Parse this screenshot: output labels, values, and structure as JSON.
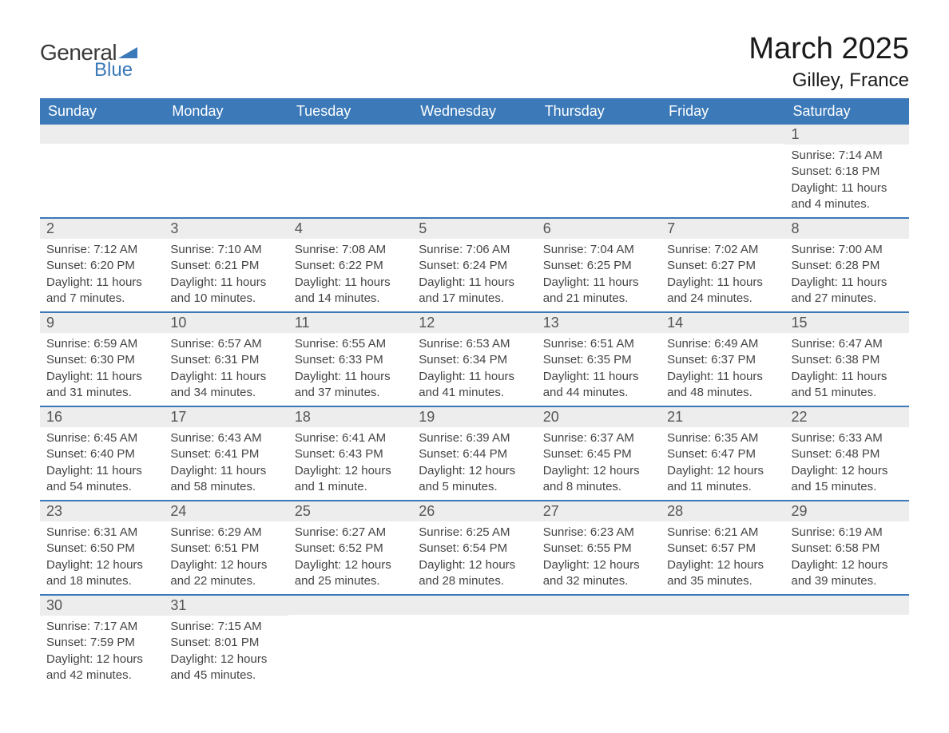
{
  "logo": {
    "text_general": "General",
    "text_blue": "Blue",
    "shape_color": "#3b79b8",
    "text_general_color": "#3a3a3a"
  },
  "header": {
    "month_title": "March 2025",
    "location": "Gilley, France"
  },
  "styling": {
    "header_bg": "#3b79b8",
    "header_text_color": "#ffffff",
    "daynum_bg": "#ededed",
    "daynum_text_color": "#555555",
    "body_text_color": "#444444",
    "row_divider_color": "#3b79b8",
    "background_color": "#ffffff",
    "header_fontsize": 18,
    "daynum_fontsize": 18,
    "content_fontsize": 15,
    "title_fontsize": 38,
    "location_fontsize": 24
  },
  "calendar": {
    "type": "table",
    "columns": [
      "Sunday",
      "Monday",
      "Tuesday",
      "Wednesday",
      "Thursday",
      "Friday",
      "Saturday"
    ],
    "weeks": [
      [
        null,
        null,
        null,
        null,
        null,
        null,
        {
          "day": "1",
          "sunrise": "7:14 AM",
          "sunset": "6:18 PM",
          "daylight": "11 hours and 4 minutes."
        }
      ],
      [
        {
          "day": "2",
          "sunrise": "7:12 AM",
          "sunset": "6:20 PM",
          "daylight": "11 hours and 7 minutes."
        },
        {
          "day": "3",
          "sunrise": "7:10 AM",
          "sunset": "6:21 PM",
          "daylight": "11 hours and 10 minutes."
        },
        {
          "day": "4",
          "sunrise": "7:08 AM",
          "sunset": "6:22 PM",
          "daylight": "11 hours and 14 minutes."
        },
        {
          "day": "5",
          "sunrise": "7:06 AM",
          "sunset": "6:24 PM",
          "daylight": "11 hours and 17 minutes."
        },
        {
          "day": "6",
          "sunrise": "7:04 AM",
          "sunset": "6:25 PM",
          "daylight": "11 hours and 21 minutes."
        },
        {
          "day": "7",
          "sunrise": "7:02 AM",
          "sunset": "6:27 PM",
          "daylight": "11 hours and 24 minutes."
        },
        {
          "day": "8",
          "sunrise": "7:00 AM",
          "sunset": "6:28 PM",
          "daylight": "11 hours and 27 minutes."
        }
      ],
      [
        {
          "day": "9",
          "sunrise": "6:59 AM",
          "sunset": "6:30 PM",
          "daylight": "11 hours and 31 minutes."
        },
        {
          "day": "10",
          "sunrise": "6:57 AM",
          "sunset": "6:31 PM",
          "daylight": "11 hours and 34 minutes."
        },
        {
          "day": "11",
          "sunrise": "6:55 AM",
          "sunset": "6:33 PM",
          "daylight": "11 hours and 37 minutes."
        },
        {
          "day": "12",
          "sunrise": "6:53 AM",
          "sunset": "6:34 PM",
          "daylight": "11 hours and 41 minutes."
        },
        {
          "day": "13",
          "sunrise": "6:51 AM",
          "sunset": "6:35 PM",
          "daylight": "11 hours and 44 minutes."
        },
        {
          "day": "14",
          "sunrise": "6:49 AM",
          "sunset": "6:37 PM",
          "daylight": "11 hours and 48 minutes."
        },
        {
          "day": "15",
          "sunrise": "6:47 AM",
          "sunset": "6:38 PM",
          "daylight": "11 hours and 51 minutes."
        }
      ],
      [
        {
          "day": "16",
          "sunrise": "6:45 AM",
          "sunset": "6:40 PM",
          "daylight": "11 hours and 54 minutes."
        },
        {
          "day": "17",
          "sunrise": "6:43 AM",
          "sunset": "6:41 PM",
          "daylight": "11 hours and 58 minutes."
        },
        {
          "day": "18",
          "sunrise": "6:41 AM",
          "sunset": "6:43 PM",
          "daylight": "12 hours and 1 minute."
        },
        {
          "day": "19",
          "sunrise": "6:39 AM",
          "sunset": "6:44 PM",
          "daylight": "12 hours and 5 minutes."
        },
        {
          "day": "20",
          "sunrise": "6:37 AM",
          "sunset": "6:45 PM",
          "daylight": "12 hours and 8 minutes."
        },
        {
          "day": "21",
          "sunrise": "6:35 AM",
          "sunset": "6:47 PM",
          "daylight": "12 hours and 11 minutes."
        },
        {
          "day": "22",
          "sunrise": "6:33 AM",
          "sunset": "6:48 PM",
          "daylight": "12 hours and 15 minutes."
        }
      ],
      [
        {
          "day": "23",
          "sunrise": "6:31 AM",
          "sunset": "6:50 PM",
          "daylight": "12 hours and 18 minutes."
        },
        {
          "day": "24",
          "sunrise": "6:29 AM",
          "sunset": "6:51 PM",
          "daylight": "12 hours and 22 minutes."
        },
        {
          "day": "25",
          "sunrise": "6:27 AM",
          "sunset": "6:52 PM",
          "daylight": "12 hours and 25 minutes."
        },
        {
          "day": "26",
          "sunrise": "6:25 AM",
          "sunset": "6:54 PM",
          "daylight": "12 hours and 28 minutes."
        },
        {
          "day": "27",
          "sunrise": "6:23 AM",
          "sunset": "6:55 PM",
          "daylight": "12 hours and 32 minutes."
        },
        {
          "day": "28",
          "sunrise": "6:21 AM",
          "sunset": "6:57 PM",
          "daylight": "12 hours and 35 minutes."
        },
        {
          "day": "29",
          "sunrise": "6:19 AM",
          "sunset": "6:58 PM",
          "daylight": "12 hours and 39 minutes."
        }
      ],
      [
        {
          "day": "30",
          "sunrise": "7:17 AM",
          "sunset": "7:59 PM",
          "daylight": "12 hours and 42 minutes."
        },
        {
          "day": "31",
          "sunrise": "7:15 AM",
          "sunset": "8:01 PM",
          "daylight": "12 hours and 45 minutes."
        },
        null,
        null,
        null,
        null,
        null
      ]
    ],
    "labels": {
      "sunrise_prefix": "Sunrise: ",
      "sunset_prefix": "Sunset: ",
      "daylight_prefix": "Daylight: "
    }
  }
}
